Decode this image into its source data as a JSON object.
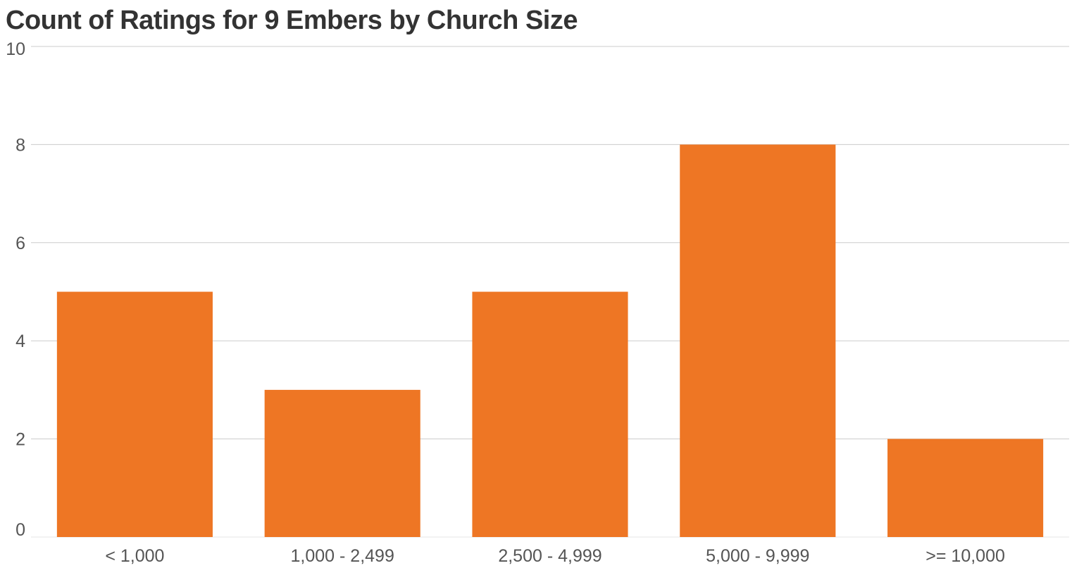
{
  "chart_data": {
    "type": "bar",
    "title": "Count of Ratings for 9 Embers by Church Size",
    "xlabel": "",
    "ylabel": "",
    "categories": [
      "< 1,000",
      "1,000 - 2,499",
      "2,500 - 4,999",
      "5,000 - 9,999",
      ">= 10,000"
    ],
    "values": [
      5,
      3,
      5,
      8,
      2
    ],
    "ylim": [
      0,
      10
    ],
    "yticks": [
      0,
      2,
      4,
      6,
      8,
      10
    ],
    "grid": true,
    "legend": "none",
    "bar_color": "#ee7624",
    "grid_color": "#cccccc",
    "text_color": "#555555",
    "title_color": "#333333"
  }
}
